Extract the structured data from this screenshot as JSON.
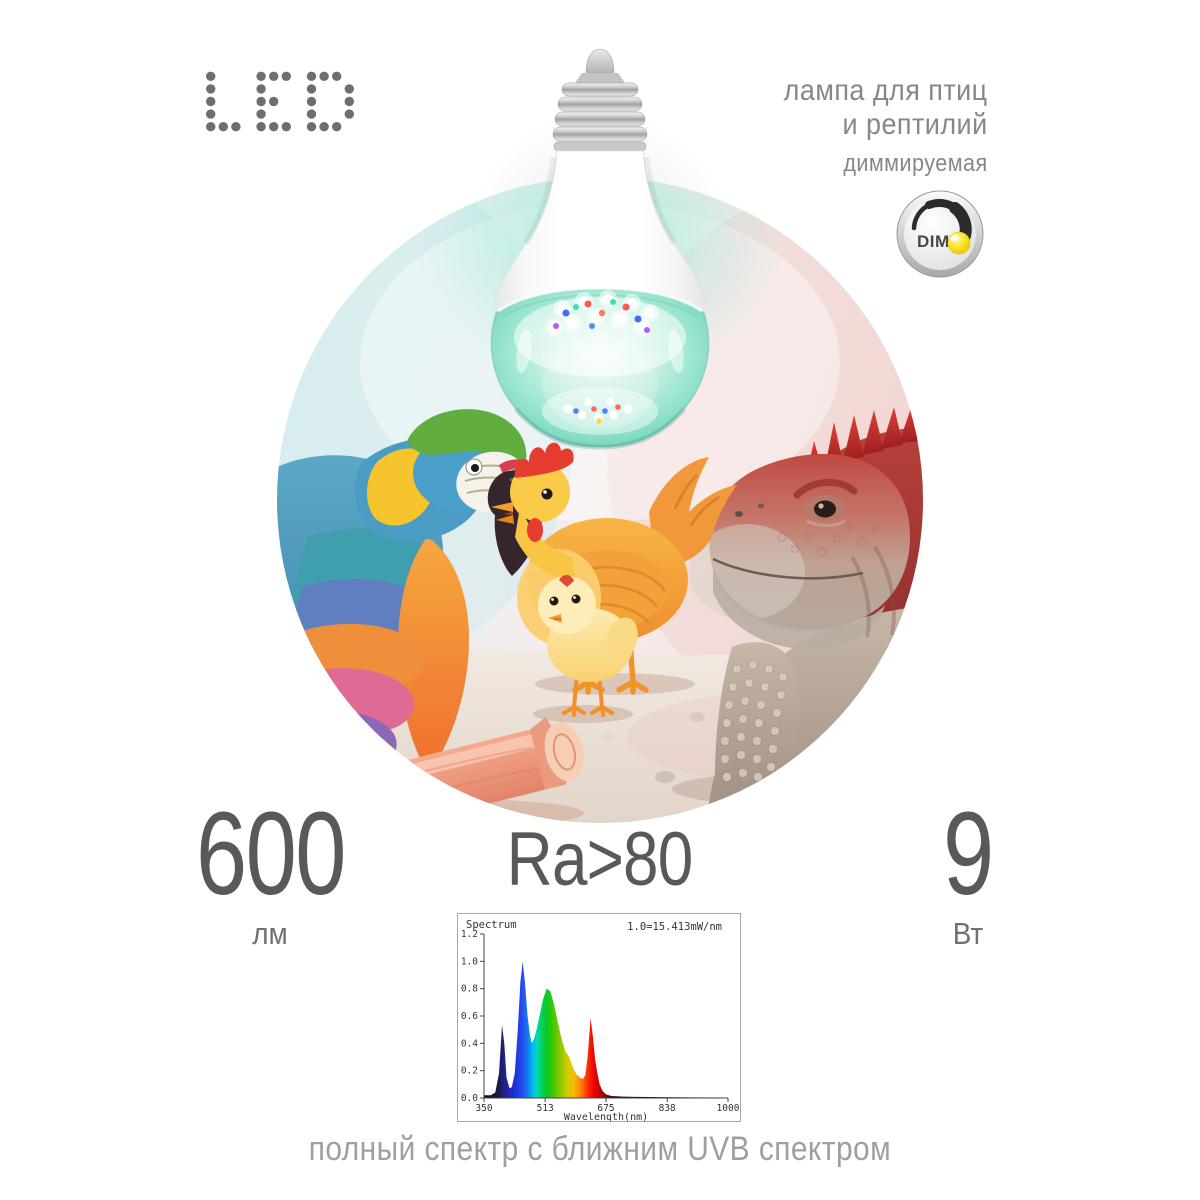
{
  "brand": {
    "logo_text": "LED"
  },
  "header": {
    "line1": "лампа для птиц",
    "line2": "и рептилий",
    "line3": "диммируемая",
    "dim_badge": "DIM"
  },
  "specs": {
    "lumens_value": "600",
    "lumens_unit": "лм",
    "cri": "Ra>80",
    "watts_value": "9",
    "watts_unit": "Вт"
  },
  "caption": "полный спектр с ближним UVB спектром",
  "photo": {
    "scene": [
      "macaw-parrot",
      "hen",
      "chick",
      "red-iguana",
      "driftwood-log",
      "sandy-ground",
      "teal-lamp-glow"
    ]
  },
  "colors": {
    "logo_dots": "#6d6e70",
    "headline_text": "#85888b",
    "stat_text": "#58595b",
    "unit_text": "#6e7073",
    "caption_text": "#9da0a3",
    "dim_yellow": "#f7e01a",
    "glass_glow": "#7fdcc8",
    "accent_red": "#e63c30"
  },
  "chart_data": {
    "type": "area",
    "title": "Spectrum",
    "annotation": "1.0=15.413mW/nm",
    "xlabel": "Wavelength(nm)",
    "xlim": [
      350,
      1000
    ],
    "ylim": [
      0,
      1.2
    ],
    "xticks": [
      350,
      513,
      675,
      838,
      1000
    ],
    "yticks": [
      0.0,
      0.2,
      0.4,
      0.6,
      0.8,
      1.0,
      1.2
    ],
    "x": [
      350,
      368,
      380,
      390,
      398,
      404,
      410,
      418,
      424,
      432,
      440,
      447,
      453,
      459,
      466,
      472,
      477,
      483,
      490,
      498,
      507,
      517,
      527,
      537,
      547,
      557,
      567,
      577,
      587,
      597,
      607,
      614,
      620,
      626,
      634,
      640,
      646,
      652,
      658,
      666,
      676,
      690,
      720,
      760,
      820,
      900,
      1000
    ],
    "y": [
      0.02,
      0.02,
      0.04,
      0.18,
      0.535,
      0.4,
      0.15,
      0.07,
      0.08,
      0.18,
      0.5,
      0.85,
      1.0,
      0.85,
      0.6,
      0.47,
      0.4,
      0.43,
      0.5,
      0.6,
      0.72,
      0.8,
      0.78,
      0.68,
      0.55,
      0.43,
      0.34,
      0.3,
      0.22,
      0.17,
      0.145,
      0.14,
      0.17,
      0.3,
      0.585,
      0.45,
      0.28,
      0.18,
      0.1,
      0.05,
      0.025,
      0.015,
      0.01,
      0.008,
      0.006,
      0.005,
      0.004
    ],
    "peaks": [
      {
        "nm": 398,
        "value": 0.53
      },
      {
        "nm": 453,
        "value": 1.0
      },
      {
        "nm": 520,
        "value": 0.8
      },
      {
        "nm": 634,
        "value": 0.58
      }
    ],
    "spectrum_colors": [
      {
        "nm": 350,
        "color": "#0e0e16"
      },
      {
        "nm": 388,
        "color": "#191946"
      },
      {
        "nm": 400,
        "color": "#1f1f7a"
      },
      {
        "nm": 415,
        "color": "#2424ae"
      },
      {
        "nm": 435,
        "color": "#1837d8"
      },
      {
        "nm": 452,
        "color": "#2a4bf0"
      },
      {
        "nm": 468,
        "color": "#0b86f0"
      },
      {
        "nm": 480,
        "color": "#00bdeb"
      },
      {
        "nm": 491,
        "color": "#00d8c2"
      },
      {
        "nm": 502,
        "color": "#00d464"
      },
      {
        "nm": 517,
        "color": "#08c824"
      },
      {
        "nm": 535,
        "color": "#46c804"
      },
      {
        "nm": 555,
        "color": "#94c800"
      },
      {
        "nm": 574,
        "color": "#d6cc00"
      },
      {
        "nm": 590,
        "color": "#f7b900"
      },
      {
        "nm": 605,
        "color": "#ff8a00"
      },
      {
        "nm": 618,
        "color": "#ff5400"
      },
      {
        "nm": 630,
        "color": "#fb2400"
      },
      {
        "nm": 641,
        "color": "#ea0802"
      },
      {
        "nm": 655,
        "color": "#cf0000"
      },
      {
        "nm": 668,
        "color": "#a30000"
      },
      {
        "nm": 682,
        "color": "#600000"
      },
      {
        "nm": 705,
        "color": "#2e0000"
      },
      {
        "nm": 1000,
        "color": "#120000"
      }
    ],
    "legend": null,
    "grid": false
  }
}
